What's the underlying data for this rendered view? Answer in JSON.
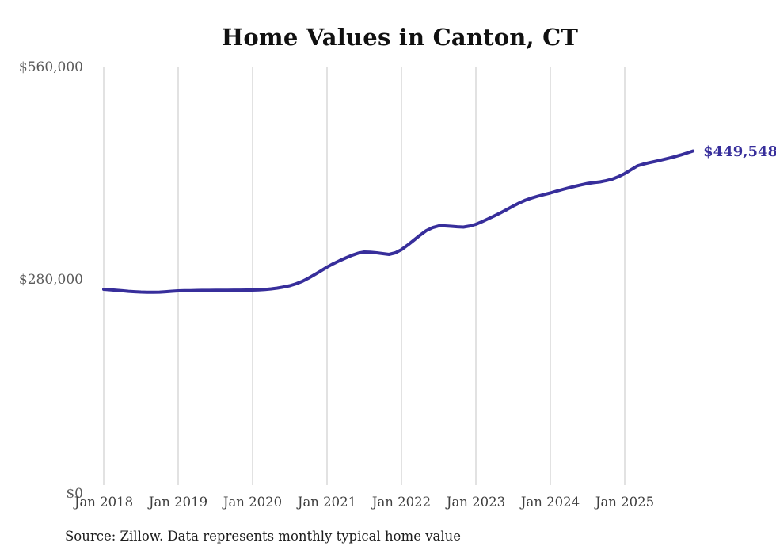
{
  "chart": {
    "title": "Home Values in Canton, CT",
    "annotation": "$449,548",
    "source_note": "Source: Zillow. Data represents monthly typical home value",
    "colors": {
      "line": "#372e9b",
      "annotation": "#372e9b",
      "grid": "#cfcfcf",
      "y_tick_text": "#5a5a5a",
      "x_tick_text": "#3f3f3f",
      "title_text": "#111111"
    }
  },
  "chart_data": {
    "type": "line",
    "title": "Home Values in Canton, CT",
    "xlabel": "",
    "ylabel": "",
    "ylim": [
      0,
      560000
    ],
    "grid": "vertical-only",
    "legend": "none",
    "source": "Source: Zillow. Data represents monthly typical home value",
    "last_value_label": "$449,548",
    "last_value": 449548,
    "y_ticks": [
      {
        "label": "$0",
        "value": 0
      },
      {
        "label": "$280,000",
        "value": 280000
      },
      {
        "label": "$560,000",
        "value": 560000
      }
    ],
    "x_ticks": [
      {
        "label": "Jan 2018",
        "month_index": 0
      },
      {
        "label": "Jan 2019",
        "month_index": 12
      },
      {
        "label": "Jan 2020",
        "month_index": 24
      },
      {
        "label": "Jan 2021",
        "month_index": 36
      },
      {
        "label": "Jan 2022",
        "month_index": 48
      },
      {
        "label": "Jan 2023",
        "month_index": 60
      },
      {
        "label": "Jan 2024",
        "month_index": 72
      },
      {
        "label": "Jan 2025",
        "month_index": 84
      }
    ],
    "x": [
      "2018-01",
      "2018-02",
      "2018-03",
      "2018-04",
      "2018-05",
      "2018-06",
      "2018-07",
      "2018-08",
      "2018-09",
      "2018-10",
      "2018-11",
      "2018-12",
      "2019-01",
      "2019-02",
      "2019-03",
      "2019-04",
      "2019-05",
      "2019-06",
      "2019-07",
      "2019-08",
      "2019-09",
      "2019-10",
      "2019-11",
      "2019-12",
      "2020-01",
      "2020-02",
      "2020-03",
      "2020-04",
      "2020-05",
      "2020-06",
      "2020-07",
      "2020-08",
      "2020-09",
      "2020-10",
      "2020-11",
      "2020-12",
      "2021-01",
      "2021-02",
      "2021-03",
      "2021-04",
      "2021-05",
      "2021-06",
      "2021-07",
      "2021-08",
      "2021-09",
      "2021-10",
      "2021-11",
      "2021-12",
      "2022-01",
      "2022-02",
      "2022-03",
      "2022-04",
      "2022-05",
      "2022-06",
      "2022-07",
      "2022-08",
      "2022-09",
      "2022-10",
      "2022-11",
      "2022-12",
      "2023-01",
      "2023-02",
      "2023-03",
      "2023-04",
      "2023-05",
      "2023-06",
      "2023-07",
      "2023-08",
      "2023-09",
      "2023-10",
      "2023-11",
      "2023-12",
      "2024-01",
      "2024-02",
      "2024-03",
      "2024-04",
      "2024-05",
      "2024-06",
      "2024-07",
      "2024-08",
      "2024-09",
      "2024-10",
      "2024-11",
      "2024-12",
      "2025-01",
      "2025-02",
      "2025-03",
      "2025-04",
      "2025-05",
      "2025-06",
      "2025-07",
      "2025-08",
      "2025-09",
      "2025-10",
      "2025-11",
      "2025-12"
    ],
    "values": [
      266900,
      266300,
      265600,
      264900,
      264200,
      263700,
      263250,
      263000,
      262900,
      263200,
      263700,
      264250,
      264800,
      265000,
      265150,
      265300,
      265400,
      265500,
      265600,
      265650,
      265700,
      265750,
      265800,
      265850,
      265900,
      266200,
      266700,
      267400,
      268500,
      269900,
      271600,
      274100,
      277400,
      281600,
      286300,
      291200,
      296200,
      300600,
      304600,
      308300,
      311700,
      314500,
      316100,
      315900,
      315100,
      314000,
      313000,
      315100,
      319300,
      325200,
      331800,
      338400,
      344400,
      348400,
      350700,
      350700,
      350100,
      349500,
      349100,
      350600,
      352700,
      356200,
      360100,
      364000,
      368000,
      372300,
      376800,
      380900,
      384700,
      387500,
      389900,
      392100,
      394100,
      396500,
      398800,
      401000,
      403000,
      404900,
      406700,
      407800,
      408700,
      410400,
      412400,
      415800,
      419700,
      424800,
      429800,
      432300,
      434200,
      436000,
      437800,
      439800,
      441900,
      444200,
      446800,
      449548
    ]
  }
}
